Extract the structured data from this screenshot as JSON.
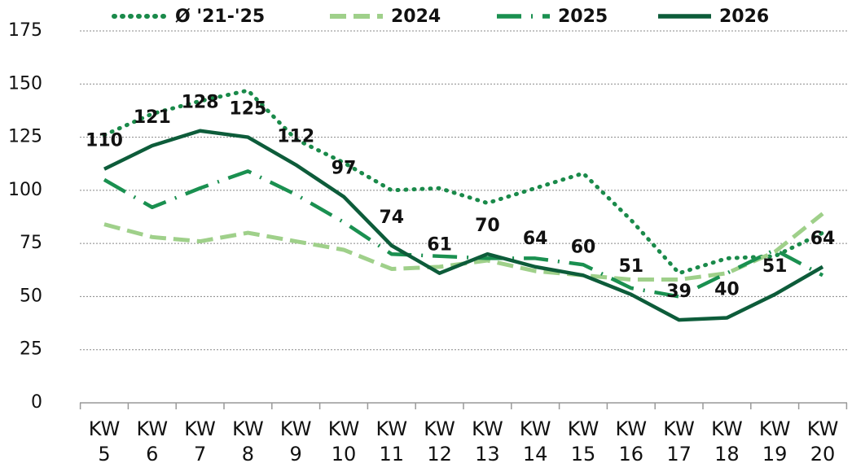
{
  "chart_data": {
    "type": "line",
    "categories": [
      "KW 5",
      "KW 6",
      "KW 7",
      "KW 8",
      "KW 9",
      "KW 10",
      "KW 11",
      "KW 12",
      "KW 13",
      "KW 14",
      "KW 15",
      "KW 16",
      "KW 17",
      "KW 18",
      "KW 19",
      "KW 20"
    ],
    "series": [
      {
        "name": "Ø '21-'25",
        "color": "#1a8a4a",
        "style": "dotted",
        "values": [
          126,
          136,
          142,
          147,
          124,
          113,
          100,
          101,
          94,
          101,
          108,
          86,
          61,
          68,
          69,
          80
        ]
      },
      {
        "name": "2024",
        "color": "#9fd08a",
        "style": "dashed",
        "values": [
          84,
          78,
          76,
          80,
          76,
          72,
          63,
          64,
          67,
          62,
          60,
          58,
          58,
          61,
          71,
          89
        ]
      },
      {
        "name": "2025",
        "color": "#1a9050",
        "style": "dashdot",
        "values": [
          105,
          92,
          101,
          109,
          98,
          85,
          70,
          69,
          68,
          68,
          65,
          54,
          50,
          61,
          72,
          60
        ]
      },
      {
        "name": "2026",
        "color": "#0d5c3a",
        "style": "solid",
        "values": [
          110,
          121,
          128,
          125,
          112,
          97,
          74,
          61,
          70,
          64,
          60,
          51,
          39,
          40,
          51,
          64
        ],
        "data_labels": true
      }
    ],
    "ylim": [
      0,
      175
    ],
    "yticks": [
      0,
      25,
      50,
      75,
      100,
      125,
      150,
      175
    ],
    "grid": true,
    "legend": "top"
  }
}
